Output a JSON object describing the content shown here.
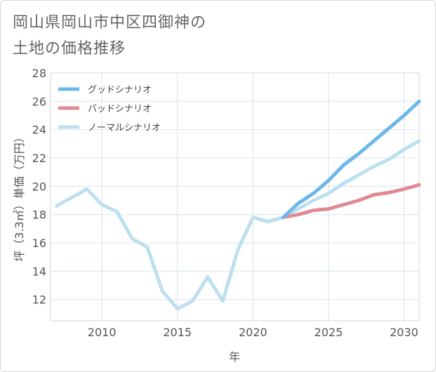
{
  "title_line1": "岡山県岡山市中区四御神の",
  "title_line2": "土地の価格推移",
  "chart_data": {
    "type": "line",
    "title": "岡山県岡山市中区四御神の土地の価格推移",
    "xlabel": "年",
    "ylabel": "坪（3.3㎡）単価（万円）",
    "xlim": [
      2006.6,
      2031
    ],
    "ylim": [
      10.5,
      28
    ],
    "xticks": [
      2010,
      2015,
      2020,
      2025,
      2030
    ],
    "yticks": [
      12,
      14,
      16,
      18,
      20,
      22,
      24,
      26,
      28
    ],
    "grid": true,
    "legend_position": "top-left",
    "series": [
      {
        "name": "グッドシナリオ",
        "color": "#6cb8ea",
        "x": [
          2022,
          2023,
          2024,
          2025,
          2026,
          2027,
          2028,
          2029,
          2030,
          2031
        ],
        "y": [
          17.8,
          18.8,
          19.5,
          20.4,
          21.5,
          22.3,
          23.2,
          24.1,
          25.0,
          26.0
        ]
      },
      {
        "name": "バッドシナリオ",
        "color": "#e08a93",
        "x": [
          2022,
          2023,
          2024,
          2025,
          2026,
          2027,
          2028,
          2029,
          2030,
          2031
        ],
        "y": [
          17.8,
          18.0,
          18.3,
          18.4,
          18.7,
          19.0,
          19.4,
          19.55,
          19.8,
          20.1
        ]
      },
      {
        "name": "ノーマルシナリオ",
        "color": "#bde0f0",
        "x": [
          2007,
          2008,
          2009,
          2010,
          2011,
          2012,
          2013,
          2014,
          2015,
          2016,
          2017,
          2018,
          2019,
          2020,
          2021,
          2022,
          2023,
          2024,
          2025,
          2026,
          2027,
          2028,
          2029,
          2030,
          2031
        ],
        "y": [
          18.6,
          19.2,
          19.8,
          18.7,
          18.2,
          16.3,
          15.7,
          12.6,
          11.35,
          11.9,
          13.6,
          11.9,
          15.5,
          17.8,
          17.5,
          17.8,
          18.4,
          19.0,
          19.5,
          20.2,
          20.8,
          21.4,
          21.9,
          22.6,
          23.2
        ]
      }
    ]
  }
}
